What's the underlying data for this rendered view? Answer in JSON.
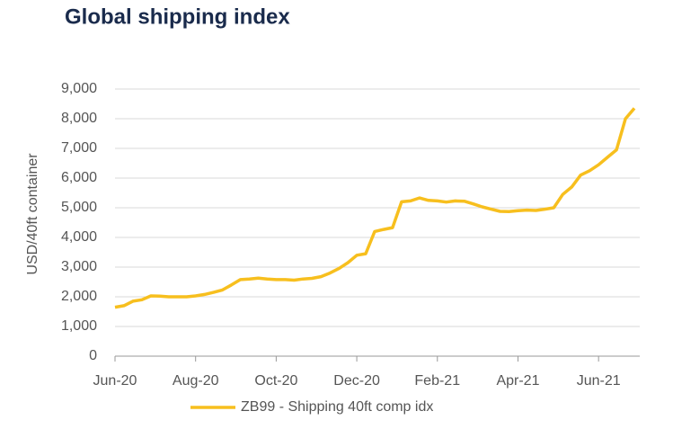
{
  "chart_data": {
    "type": "line",
    "title": "Global shipping index",
    "y_label": "USD/40ft container",
    "categories": [
      "Jun-20",
      null,
      null,
      null,
      null,
      null,
      null,
      null,
      null,
      "Aug-20",
      null,
      null,
      null,
      null,
      null,
      null,
      null,
      null,
      "Oct-20",
      null,
      null,
      null,
      null,
      null,
      null,
      null,
      null,
      "Dec-20",
      null,
      null,
      null,
      null,
      null,
      null,
      null,
      null,
      "Feb-21",
      null,
      null,
      null,
      null,
      null,
      null,
      null,
      null,
      "Apr-21",
      null,
      null,
      null,
      null,
      null,
      null,
      null,
      null,
      "Jun-21",
      null,
      null,
      null,
      null
    ],
    "series": [
      {
        "name": "ZB99 - Shipping 40ft comp idx",
        "color": "#f7bf1e",
        "values": [
          1650,
          1700,
          1850,
          1900,
          2030,
          2020,
          2000,
          2000,
          2000,
          2030,
          2080,
          2150,
          2230,
          2400,
          2580,
          2600,
          2630,
          2600,
          2580,
          2580,
          2560,
          2600,
          2620,
          2680,
          2800,
          2950,
          3150,
          3400,
          3450,
          4200,
          4270,
          4330,
          5200,
          5230,
          5330,
          5250,
          5230,
          5190,
          5230,
          5220,
          5130,
          5030,
          4950,
          4880,
          4870,
          4900,
          4920,
          4910,
          4950,
          5000,
          5450,
          5700,
          6100,
          6250,
          6450,
          6700,
          6950,
          8000,
          8350
        ]
      }
    ],
    "ylim": [
      0,
      9000
    ],
    "yticks": [
      0,
      {
        "value": 1000,
        "label": "1,000"
      },
      {
        "value": 2000,
        "label": "2,000"
      },
      {
        "value": 3000,
        "label": "3,000"
      },
      {
        "value": 4000,
        "label": "4,000"
      },
      {
        "value": 5000,
        "label": "5,000"
      },
      {
        "value": 6000,
        "label": "6,000"
      },
      {
        "value": 7000,
        "label": "7,000"
      },
      {
        "value": 8000,
        "label": "8,000"
      },
      {
        "value": 9000,
        "label": "9,000"
      }
    ],
    "grid": true,
    "legend": "bottom"
  }
}
